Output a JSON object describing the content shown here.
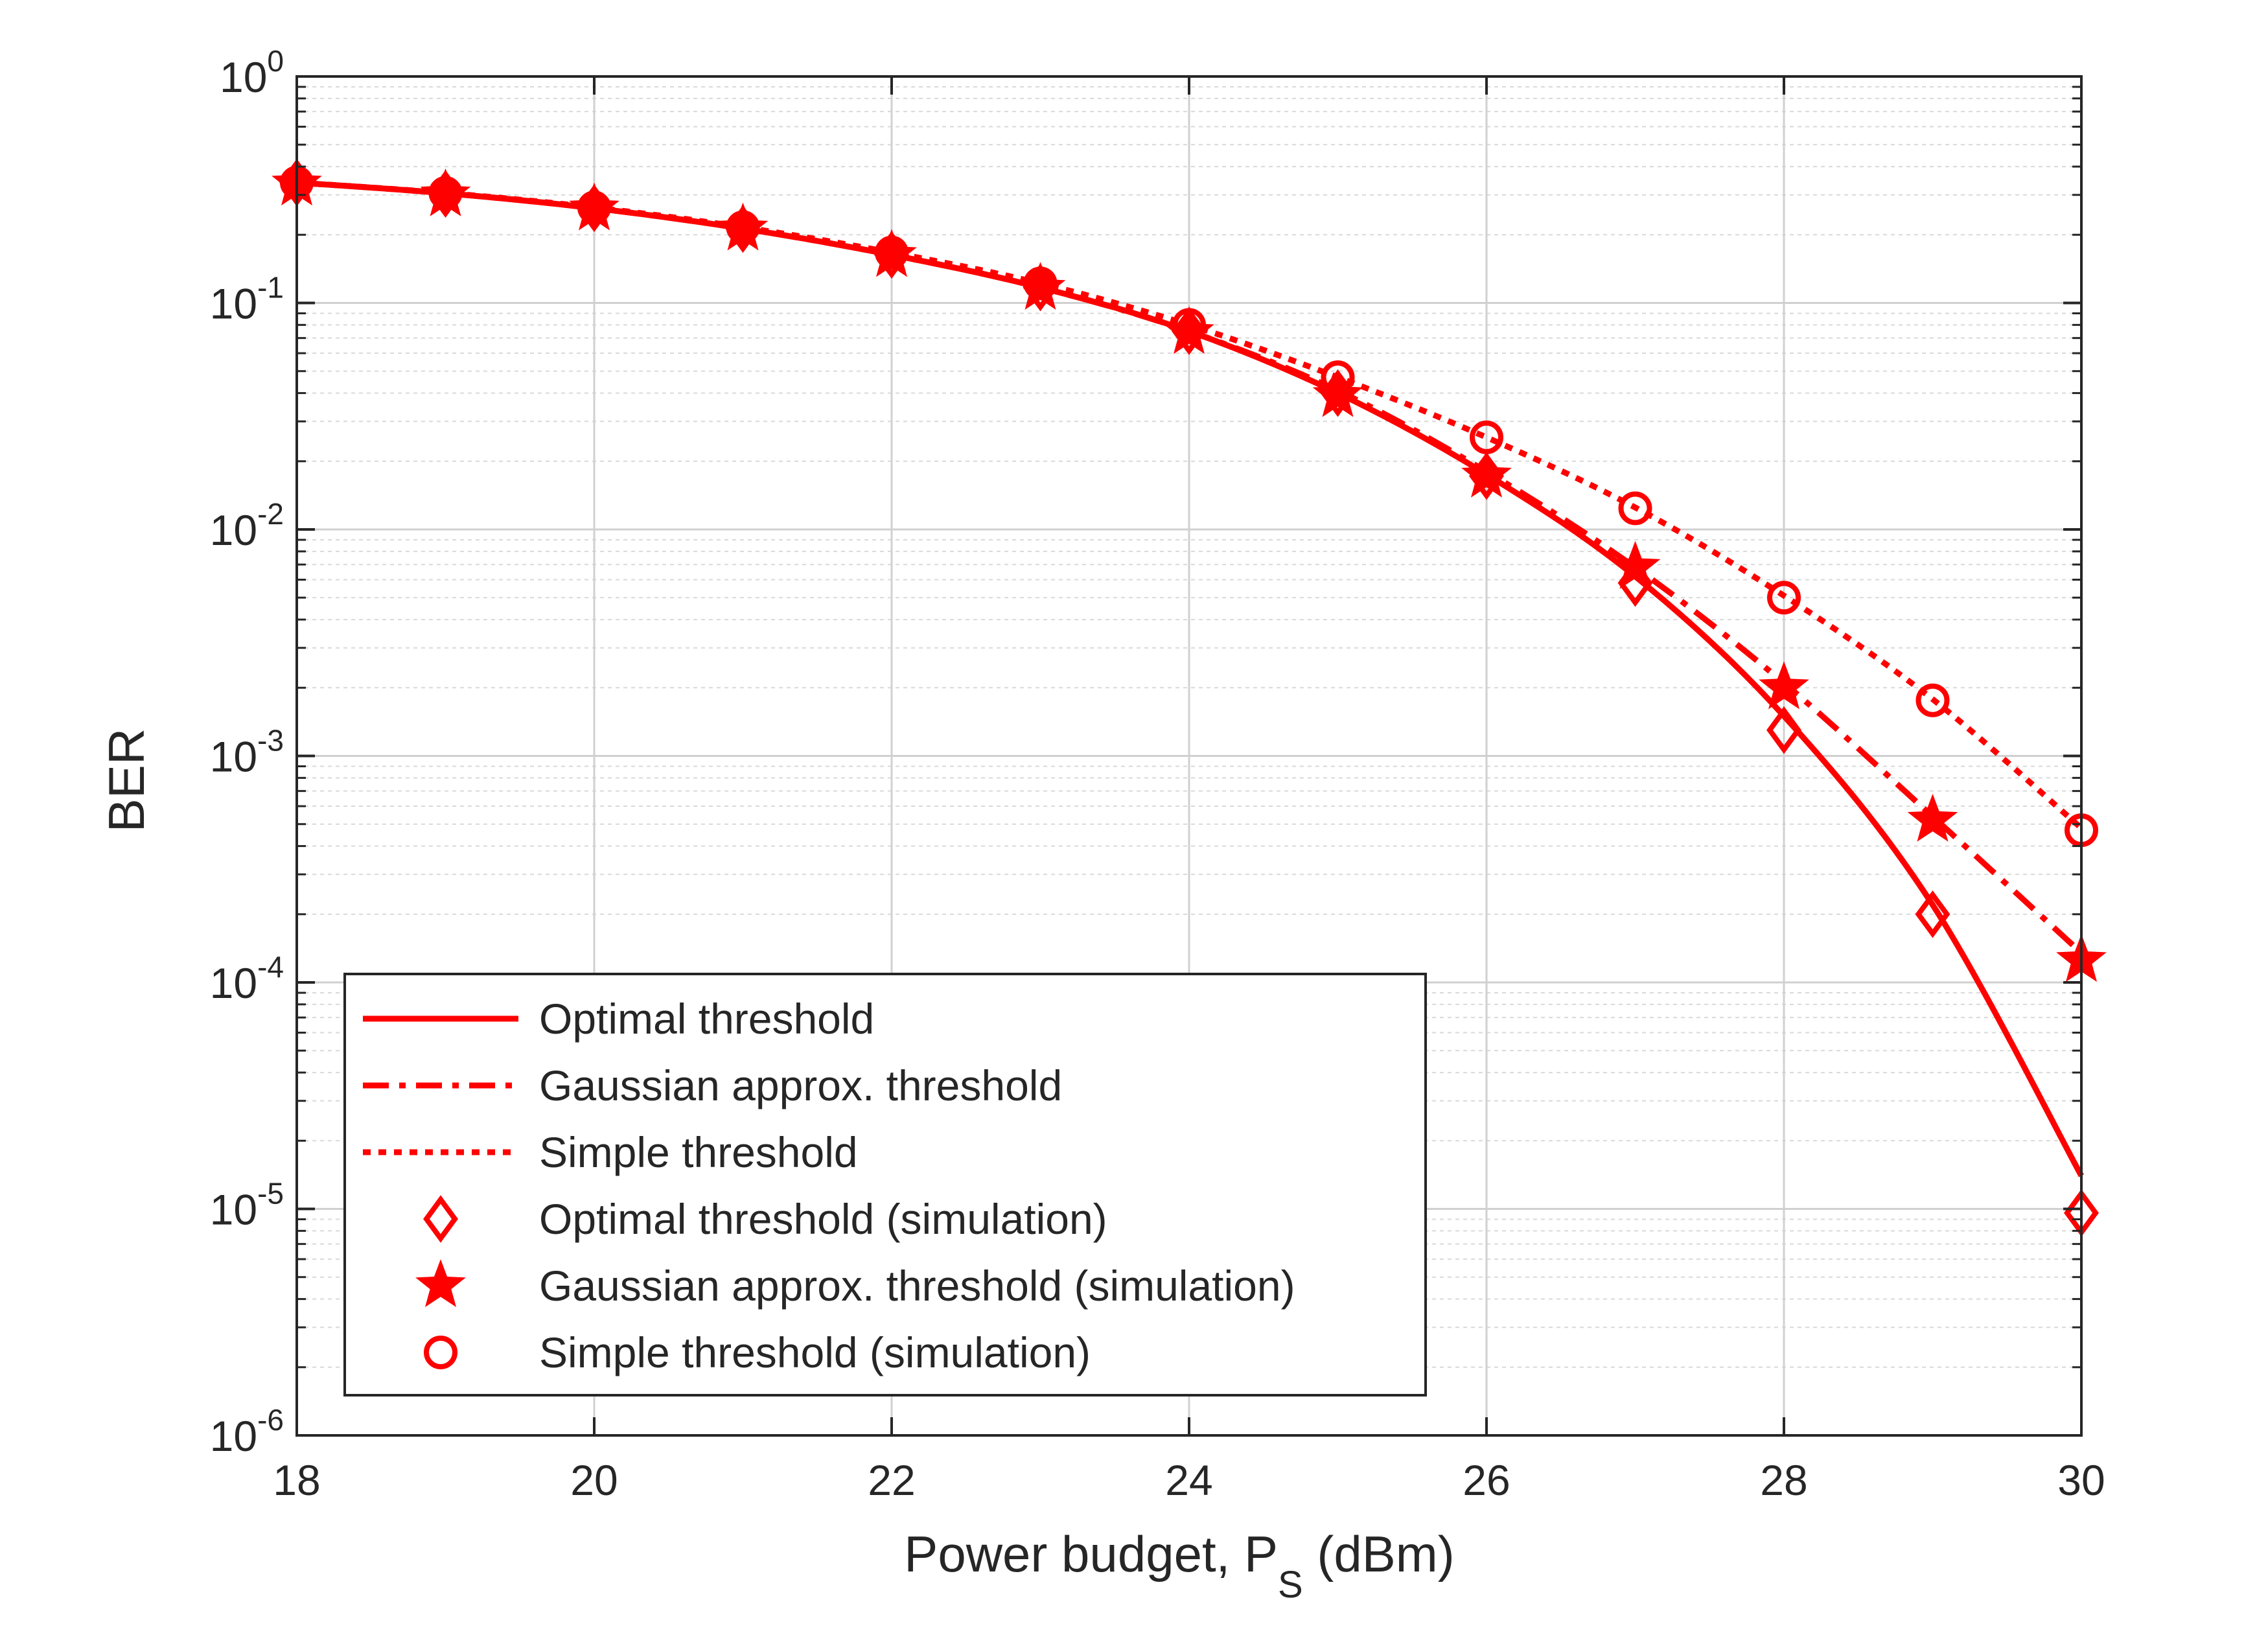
{
  "chart_data": {
    "type": "line",
    "title": "",
    "xlabel": "Power budget, P",
    "xlabel_sub": "S",
    "xlabel_suffix": " (dBm)",
    "ylabel": "BER",
    "xlim": [
      18,
      30
    ],
    "ylim": [
      1e-06,
      1
    ],
    "yscale": "log",
    "grid": true,
    "legend_position": "lower-left",
    "x_ticks": [
      18,
      20,
      22,
      24,
      26,
      28,
      30
    ],
    "y_ticks": [
      {
        "exp": -6,
        "base": "10",
        "sup": "-6"
      },
      {
        "exp": -5,
        "base": "10",
        "sup": "-5"
      },
      {
        "exp": -4,
        "base": "10",
        "sup": "-4"
      },
      {
        "exp": -3,
        "base": "10",
        "sup": "-3"
      },
      {
        "exp": -2,
        "base": "10",
        "sup": "-2"
      },
      {
        "exp": -1,
        "base": "10",
        "sup": "-1"
      },
      {
        "exp": 0,
        "base": "10",
        "sup": "0"
      }
    ],
    "curve_x": [
      18,
      19,
      20,
      21,
      22,
      23,
      24,
      25,
      26,
      27,
      28,
      29,
      30
    ],
    "series": [
      {
        "name": "Optimal threshold",
        "kind": "line",
        "dash": "solid",
        "color": "#ff0000",
        "values": [
          0.34,
          0.305,
          0.262,
          0.213,
          0.163,
          0.117,
          0.075,
          0.04,
          0.0175,
          0.0062,
          0.0015,
          0.00022,
          1.4e-05
        ]
      },
      {
        "name": "Gaussian approx. threshold",
        "kind": "line",
        "dash": "dashdot",
        "color": "#ff0000",
        "values": [
          0.34,
          0.305,
          0.262,
          0.213,
          0.163,
          0.117,
          0.075,
          0.041,
          0.018,
          0.0068,
          0.0021,
          0.00054,
          0.000135
        ]
      },
      {
        "name": "Simple threshold",
        "kind": "line",
        "dash": "dotted",
        "color": "#ff0000",
        "values": [
          0.34,
          0.306,
          0.264,
          0.216,
          0.167,
          0.122,
          0.08,
          0.047,
          0.0255,
          0.0125,
          0.0051,
          0.00178,
          0.00048
        ]
      },
      {
        "name": "Optimal threshold (simulation)",
        "kind": "marker",
        "marker": "diamond",
        "color": "#ff0000",
        "x": [
          18,
          19,
          20,
          21,
          22,
          23,
          24,
          25,
          26,
          27,
          28,
          29,
          30
        ],
        "values": [
          0.34,
          0.303,
          0.262,
          0.212,
          0.163,
          0.117,
          0.075,
          0.04,
          0.0172,
          0.0058,
          0.0013,
          0.0002,
          9.6e-06
        ]
      },
      {
        "name": "Gaussian approx. threshold (simulation)",
        "kind": "marker",
        "marker": "star",
        "color": "#ff0000",
        "x": [
          18,
          19,
          20,
          21,
          22,
          23,
          24,
          25,
          26,
          27,
          28,
          29,
          30
        ],
        "values": [
          0.335,
          0.3,
          0.26,
          0.212,
          0.162,
          0.116,
          0.074,
          0.039,
          0.0172,
          0.0068,
          0.002,
          0.00052,
          0.000125
        ]
      },
      {
        "name": "Simple threshold (simulation)",
        "kind": "marker",
        "marker": "circle",
        "color": "#ff0000",
        "x": [
          18,
          19,
          20,
          21,
          22,
          23,
          24,
          25,
          26,
          27,
          28,
          29,
          30
        ],
        "values": [
          0.34,
          0.306,
          0.264,
          0.216,
          0.167,
          0.122,
          0.08,
          0.047,
          0.0255,
          0.0124,
          0.005,
          0.00176,
          0.00047
        ]
      }
    ]
  }
}
